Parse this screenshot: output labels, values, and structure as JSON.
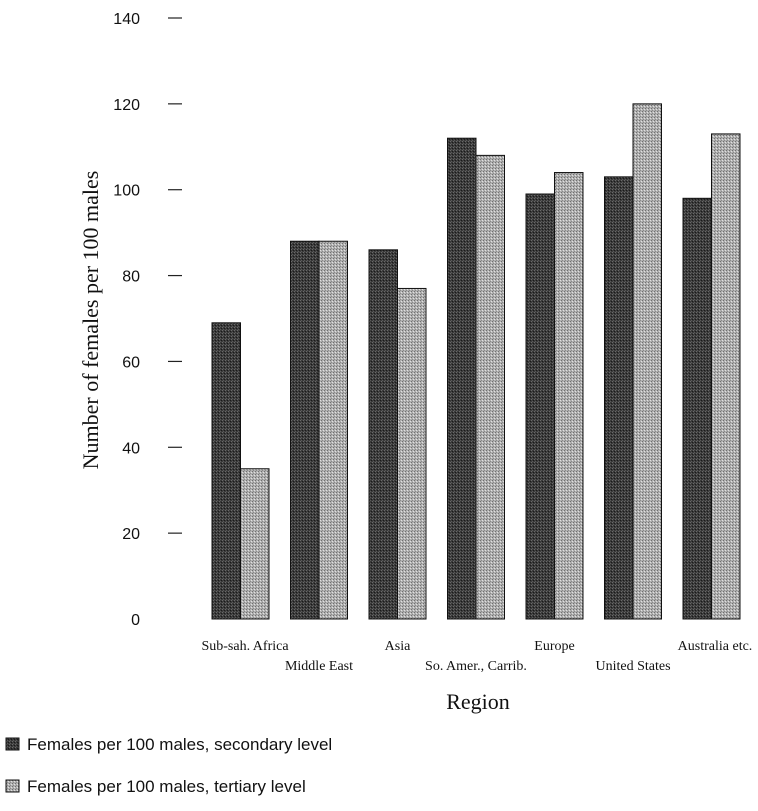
{
  "chart_data": {
    "type": "bar",
    "title": "",
    "xlabel": "Region",
    "ylabel": "Number of females per 100 males",
    "ylim": [
      0,
      140
    ],
    "yticks": [
      0,
      20,
      40,
      60,
      80,
      100,
      120,
      140
    ],
    "categories": [
      "Sub-sah. Africa",
      "Middle East",
      "Asia",
      "So. Amer., Carrib.",
      "Europe",
      "United States",
      "Australia etc."
    ],
    "series": [
      {
        "name": "Females per 100 males, secondary level",
        "values": [
          69,
          88,
          86,
          112,
          99,
          103,
          98
        ],
        "color": "#333333"
      },
      {
        "name": "Females per 100 males, tertiary level",
        "values": [
          35,
          88,
          77,
          108,
          104,
          120,
          113
        ],
        "color": "#9a9a9a"
      }
    ],
    "grid": false,
    "legend": "bottom"
  }
}
